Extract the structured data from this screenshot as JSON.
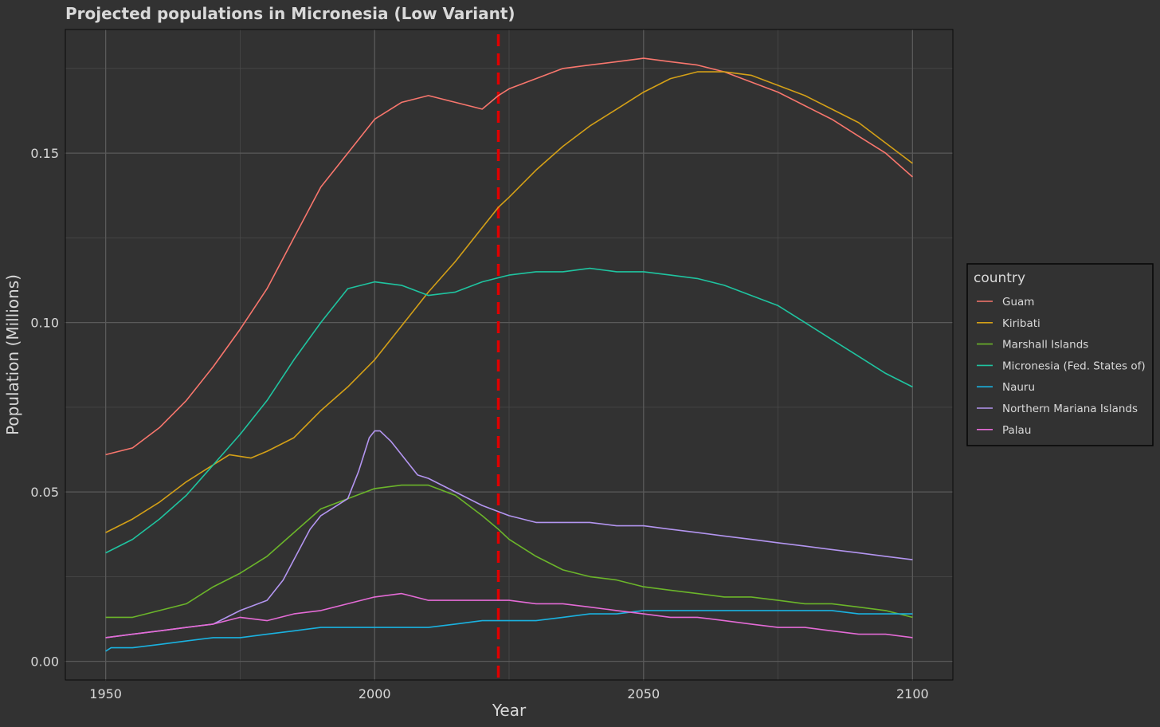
{
  "chart_data": {
    "type": "line",
    "title": "Projected populations in Micronesia (Low Variant)",
    "xlabel": "Year",
    "ylabel": "Population (Millions)",
    "xlim": [
      1942.5,
      2107.5
    ],
    "ylim": [
      -0.0055,
      0.1865
    ],
    "x_ticks": [
      1950,
      2000,
      2050,
      2100
    ],
    "x_tick_labels": [
      "1950",
      "2000",
      "2050",
      "2100"
    ],
    "y_ticks": [
      0.0,
      0.05,
      0.1,
      0.15
    ],
    "y_tick_labels": [
      "0.00",
      "0.05",
      "0.10",
      "0.15"
    ],
    "grid": true,
    "vertical_marker": {
      "x": 2023,
      "color": "#e00000",
      "style": "dashed"
    },
    "legend": {
      "title": "country",
      "position": "right"
    },
    "series": [
      {
        "name": "Guam",
        "color": "#f8766d",
        "points": [
          [
            1950,
            0.061
          ],
          [
            1955,
            0.063
          ],
          [
            1960,
            0.069
          ],
          [
            1965,
            0.077
          ],
          [
            1970,
            0.087
          ],
          [
            1975,
            0.098
          ],
          [
            1980,
            0.11
          ],
          [
            1985,
            0.125
          ],
          [
            1990,
            0.14
          ],
          [
            1995,
            0.15
          ],
          [
            2000,
            0.16
          ],
          [
            2005,
            0.165
          ],
          [
            2010,
            0.167
          ],
          [
            2015,
            0.165
          ],
          [
            2020,
            0.163
          ],
          [
            2023,
            0.167
          ],
          [
            2025,
            0.169
          ],
          [
            2030,
            0.172
          ],
          [
            2035,
            0.175
          ],
          [
            2040,
            0.176
          ],
          [
            2045,
            0.177
          ],
          [
            2050,
            0.178
          ],
          [
            2055,
            0.177
          ],
          [
            2060,
            0.176
          ],
          [
            2065,
            0.174
          ],
          [
            2070,
            0.171
          ],
          [
            2075,
            0.168
          ],
          [
            2080,
            0.164
          ],
          [
            2085,
            0.16
          ],
          [
            2090,
            0.155
          ],
          [
            2095,
            0.15
          ],
          [
            2100,
            0.143
          ]
        ]
      },
      {
        "name": "Kiribati",
        "color": "#d4a017",
        "points": [
          [
            1950,
            0.038
          ],
          [
            1955,
            0.042
          ],
          [
            1960,
            0.047
          ],
          [
            1965,
            0.053
          ],
          [
            1970,
            0.058
          ],
          [
            1973,
            0.061
          ],
          [
            1977,
            0.06
          ],
          [
            1980,
            0.062
          ],
          [
            1985,
            0.066
          ],
          [
            1990,
            0.074
          ],
          [
            1995,
            0.081
          ],
          [
            2000,
            0.089
          ],
          [
            2005,
            0.099
          ],
          [
            2010,
            0.109
          ],
          [
            2015,
            0.118
          ],
          [
            2020,
            0.128
          ],
          [
            2023,
            0.134
          ],
          [
            2025,
            0.137
          ],
          [
            2030,
            0.145
          ],
          [
            2035,
            0.152
          ],
          [
            2040,
            0.158
          ],
          [
            2045,
            0.163
          ],
          [
            2050,
            0.168
          ],
          [
            2055,
            0.172
          ],
          [
            2060,
            0.174
          ],
          [
            2065,
            0.174
          ],
          [
            2070,
            0.173
          ],
          [
            2075,
            0.17
          ],
          [
            2080,
            0.167
          ],
          [
            2085,
            0.163
          ],
          [
            2090,
            0.159
          ],
          [
            2095,
            0.153
          ],
          [
            2100,
            0.147
          ]
        ]
      },
      {
        "name": "Marshall Islands",
        "color": "#6bb52a",
        "points": [
          [
            1950,
            0.013
          ],
          [
            1955,
            0.013
          ],
          [
            1960,
            0.015
          ],
          [
            1965,
            0.017
          ],
          [
            1970,
            0.022
          ],
          [
            1975,
            0.026
          ],
          [
            1980,
            0.031
          ],
          [
            1985,
            0.038
          ],
          [
            1990,
            0.045
          ],
          [
            1995,
            0.048
          ],
          [
            2000,
            0.051
          ],
          [
            2005,
            0.052
          ],
          [
            2010,
            0.052
          ],
          [
            2015,
            0.049
          ],
          [
            2020,
            0.043
          ],
          [
            2023,
            0.039
          ],
          [
            2025,
            0.036
          ],
          [
            2030,
            0.031
          ],
          [
            2035,
            0.027
          ],
          [
            2040,
            0.025
          ],
          [
            2045,
            0.024
          ],
          [
            2050,
            0.022
          ],
          [
            2055,
            0.021
          ],
          [
            2060,
            0.02
          ],
          [
            2065,
            0.019
          ],
          [
            2070,
            0.019
          ],
          [
            2075,
            0.018
          ],
          [
            2080,
            0.017
          ],
          [
            2085,
            0.017
          ],
          [
            2090,
            0.016
          ],
          [
            2095,
            0.015
          ],
          [
            2100,
            0.013
          ]
        ]
      },
      {
        "name": "Micronesia (Fed. States of)",
        "color": "#1fc4a0",
        "points": [
          [
            1950,
            0.032
          ],
          [
            1955,
            0.036
          ],
          [
            1960,
            0.042
          ],
          [
            1965,
            0.049
          ],
          [
            1970,
            0.058
          ],
          [
            1975,
            0.067
          ],
          [
            1980,
            0.077
          ],
          [
            1985,
            0.089
          ],
          [
            1990,
            0.1
          ],
          [
            1995,
            0.11
          ],
          [
            2000,
            0.112
          ],
          [
            2005,
            0.111
          ],
          [
            2010,
            0.108
          ],
          [
            2015,
            0.109
          ],
          [
            2020,
            0.112
          ],
          [
            2025,
            0.114
          ],
          [
            2030,
            0.115
          ],
          [
            2035,
            0.115
          ],
          [
            2040,
            0.116
          ],
          [
            2045,
            0.115
          ],
          [
            2050,
            0.115
          ],
          [
            2055,
            0.114
          ],
          [
            2060,
            0.113
          ],
          [
            2065,
            0.111
          ],
          [
            2070,
            0.108
          ],
          [
            2075,
            0.105
          ],
          [
            2080,
            0.1
          ],
          [
            2085,
            0.095
          ],
          [
            2090,
            0.09
          ],
          [
            2095,
            0.085
          ],
          [
            2100,
            0.081
          ]
        ]
      },
      {
        "name": "Nauru",
        "color": "#1ab2e0",
        "points": [
          [
            1950,
            0.003
          ],
          [
            1951,
            0.004
          ],
          [
            1955,
            0.004
          ],
          [
            1960,
            0.005
          ],
          [
            1965,
            0.006
          ],
          [
            1970,
            0.007
          ],
          [
            1975,
            0.007
          ],
          [
            1980,
            0.008
          ],
          [
            1985,
            0.009
          ],
          [
            1990,
            0.01
          ],
          [
            1995,
            0.01
          ],
          [
            2000,
            0.01
          ],
          [
            2005,
            0.01
          ],
          [
            2010,
            0.01
          ],
          [
            2015,
            0.011
          ],
          [
            2020,
            0.012
          ],
          [
            2025,
            0.012
          ],
          [
            2030,
            0.012
          ],
          [
            2035,
            0.013
          ],
          [
            2040,
            0.014
          ],
          [
            2045,
            0.014
          ],
          [
            2050,
            0.015
          ],
          [
            2055,
            0.015
          ],
          [
            2060,
            0.015
          ],
          [
            2065,
            0.015
          ],
          [
            2070,
            0.015
          ],
          [
            2075,
            0.015
          ],
          [
            2080,
            0.015
          ],
          [
            2085,
            0.015
          ],
          [
            2090,
            0.014
          ],
          [
            2095,
            0.014
          ],
          [
            2100,
            0.014
          ]
        ]
      },
      {
        "name": "Northern Mariana Islands",
        "color": "#b395f0",
        "points": [
          [
            1950,
            0.007
          ],
          [
            1955,
            0.008
          ],
          [
            1960,
            0.009
          ],
          [
            1965,
            0.01
          ],
          [
            1970,
            0.011
          ],
          [
            1975,
            0.015
          ],
          [
            1980,
            0.018
          ],
          [
            1983,
            0.024
          ],
          [
            1985,
            0.03
          ],
          [
            1988,
            0.039
          ],
          [
            1990,
            0.043
          ],
          [
            1995,
            0.048
          ],
          [
            1997,
            0.056
          ],
          [
            1999,
            0.066
          ],
          [
            2000,
            0.068
          ],
          [
            2001,
            0.068
          ],
          [
            2003,
            0.065
          ],
          [
            2005,
            0.061
          ],
          [
            2008,
            0.055
          ],
          [
            2010,
            0.054
          ],
          [
            2015,
            0.05
          ],
          [
            2020,
            0.046
          ],
          [
            2025,
            0.043
          ],
          [
            2030,
            0.041
          ],
          [
            2035,
            0.041
          ],
          [
            2040,
            0.041
          ],
          [
            2045,
            0.04
          ],
          [
            2050,
            0.04
          ],
          [
            2055,
            0.039
          ],
          [
            2060,
            0.038
          ],
          [
            2065,
            0.037
          ],
          [
            2070,
            0.036
          ],
          [
            2075,
            0.035
          ],
          [
            2080,
            0.034
          ],
          [
            2085,
            0.033
          ],
          [
            2090,
            0.032
          ],
          [
            2095,
            0.031
          ],
          [
            2100,
            0.03
          ]
        ]
      },
      {
        "name": "Palau",
        "color": "#e46bd6",
        "points": [
          [
            1950,
            0.007
          ],
          [
            1955,
            0.008
          ],
          [
            1960,
            0.009
          ],
          [
            1965,
            0.01
          ],
          [
            1970,
            0.011
          ],
          [
            1975,
            0.013
          ],
          [
            1980,
            0.012
          ],
          [
            1985,
            0.014
          ],
          [
            1990,
            0.015
          ],
          [
            1995,
            0.017
          ],
          [
            2000,
            0.019
          ],
          [
            2005,
            0.02
          ],
          [
            2010,
            0.018
          ],
          [
            2015,
            0.018
          ],
          [
            2020,
            0.018
          ],
          [
            2025,
            0.018
          ],
          [
            2030,
            0.017
          ],
          [
            2035,
            0.017
          ],
          [
            2040,
            0.016
          ],
          [
            2045,
            0.015
          ],
          [
            2050,
            0.014
          ],
          [
            2055,
            0.013
          ],
          [
            2060,
            0.013
          ],
          [
            2065,
            0.012
          ],
          [
            2070,
            0.011
          ],
          [
            2075,
            0.01
          ],
          [
            2080,
            0.01
          ],
          [
            2085,
            0.009
          ],
          [
            2090,
            0.008
          ],
          [
            2095,
            0.008
          ],
          [
            2100,
            0.007
          ]
        ]
      }
    ]
  }
}
